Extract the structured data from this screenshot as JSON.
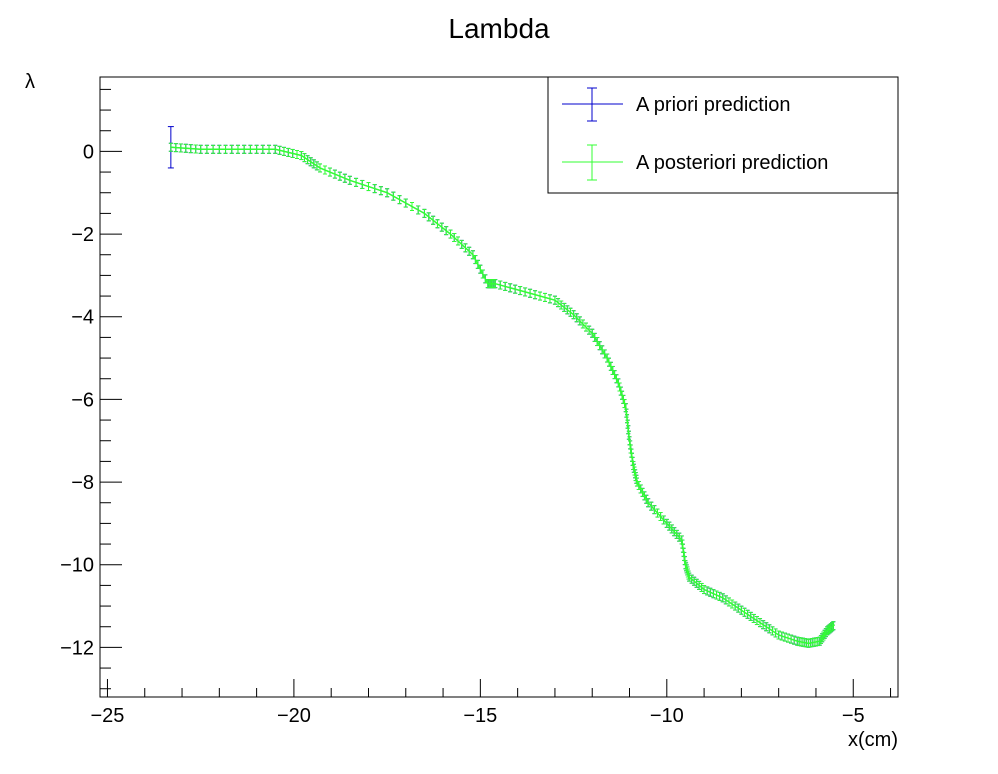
{
  "chart_data": {
    "type": "line",
    "title": "Lambda",
    "xlabel": "x(cm)",
    "ylabel": "λ",
    "xlim": [
      -25.2,
      -3.8
    ],
    "ylim": [
      -13.2,
      1.8
    ],
    "x_ticks": [
      -25,
      -20,
      -15,
      -10,
      -5
    ],
    "x_tick_labels": [
      "−25",
      "−20",
      "−15",
      "−10",
      "−5"
    ],
    "y_ticks": [
      0,
      -2,
      -4,
      -6,
      -8,
      -10,
      -12
    ],
    "y_tick_labels": [
      "0",
      "−2",
      "−4",
      "−6",
      "−8",
      "−10",
      "−12"
    ],
    "grid": false,
    "legend_position": "top-right",
    "series": [
      {
        "name": "A priori prediction",
        "color": "#0000cc",
        "first_point_error": 0.5,
        "x": [
          -23.3,
          -22.5,
          -21.5,
          -20.5,
          -19.8,
          -19.3,
          -18.5,
          -17.5,
          -16.5,
          -15.8,
          -15.2,
          -14.8,
          -14.6,
          -13.8,
          -13.0,
          -12.5,
          -12.0,
          -11.6,
          -11.3,
          -11.1,
          -11.0,
          -10.9,
          -10.8,
          -10.5,
          -10.0,
          -9.6,
          -9.5,
          -9.4,
          -9.0,
          -8.5,
          -8.0,
          -7.5,
          -7.0,
          -6.5,
          -6.2,
          -5.9,
          -5.7,
          -5.5
        ],
        "y": [
          0.1,
          0.05,
          0.05,
          0.05,
          -0.1,
          -0.4,
          -0.7,
          -1.0,
          -1.5,
          -2.0,
          -2.5,
          -3.2,
          -3.2,
          -3.4,
          -3.6,
          -3.95,
          -4.4,
          -5.0,
          -5.6,
          -6.2,
          -7.0,
          -7.6,
          -8.0,
          -8.5,
          -9.0,
          -9.4,
          -10.0,
          -10.3,
          -10.6,
          -10.8,
          -11.1,
          -11.4,
          -11.7,
          -11.85,
          -11.9,
          -11.85,
          -11.6,
          -11.45
        ]
      },
      {
        "name": "A posteriori prediction",
        "color": "#33ff33",
        "x": [
          -23.3,
          -22.5,
          -21.5,
          -20.5,
          -19.8,
          -19.3,
          -18.5,
          -17.5,
          -16.5,
          -15.8,
          -15.2,
          -14.8,
          -14.6,
          -13.8,
          -13.0,
          -12.5,
          -12.0,
          -11.6,
          -11.3,
          -11.1,
          -11.0,
          -10.9,
          -10.8,
          -10.5,
          -10.0,
          -9.6,
          -9.5,
          -9.4,
          -9.0,
          -8.5,
          -8.0,
          -7.5,
          -7.0,
          -6.5,
          -6.2,
          -5.9,
          -5.7,
          -5.5
        ],
        "y": [
          0.1,
          0.05,
          0.05,
          0.05,
          -0.1,
          -0.4,
          -0.7,
          -1.0,
          -1.5,
          -2.0,
          -2.5,
          -3.2,
          -3.2,
          -3.4,
          -3.6,
          -3.95,
          -4.4,
          -5.0,
          -5.6,
          -6.2,
          -7.0,
          -7.6,
          -8.0,
          -8.5,
          -9.0,
          -9.4,
          -10.0,
          -10.3,
          -10.6,
          -10.8,
          -11.1,
          -11.4,
          -11.7,
          -11.85,
          -11.9,
          -11.85,
          -11.6,
          -11.45
        ]
      }
    ]
  }
}
